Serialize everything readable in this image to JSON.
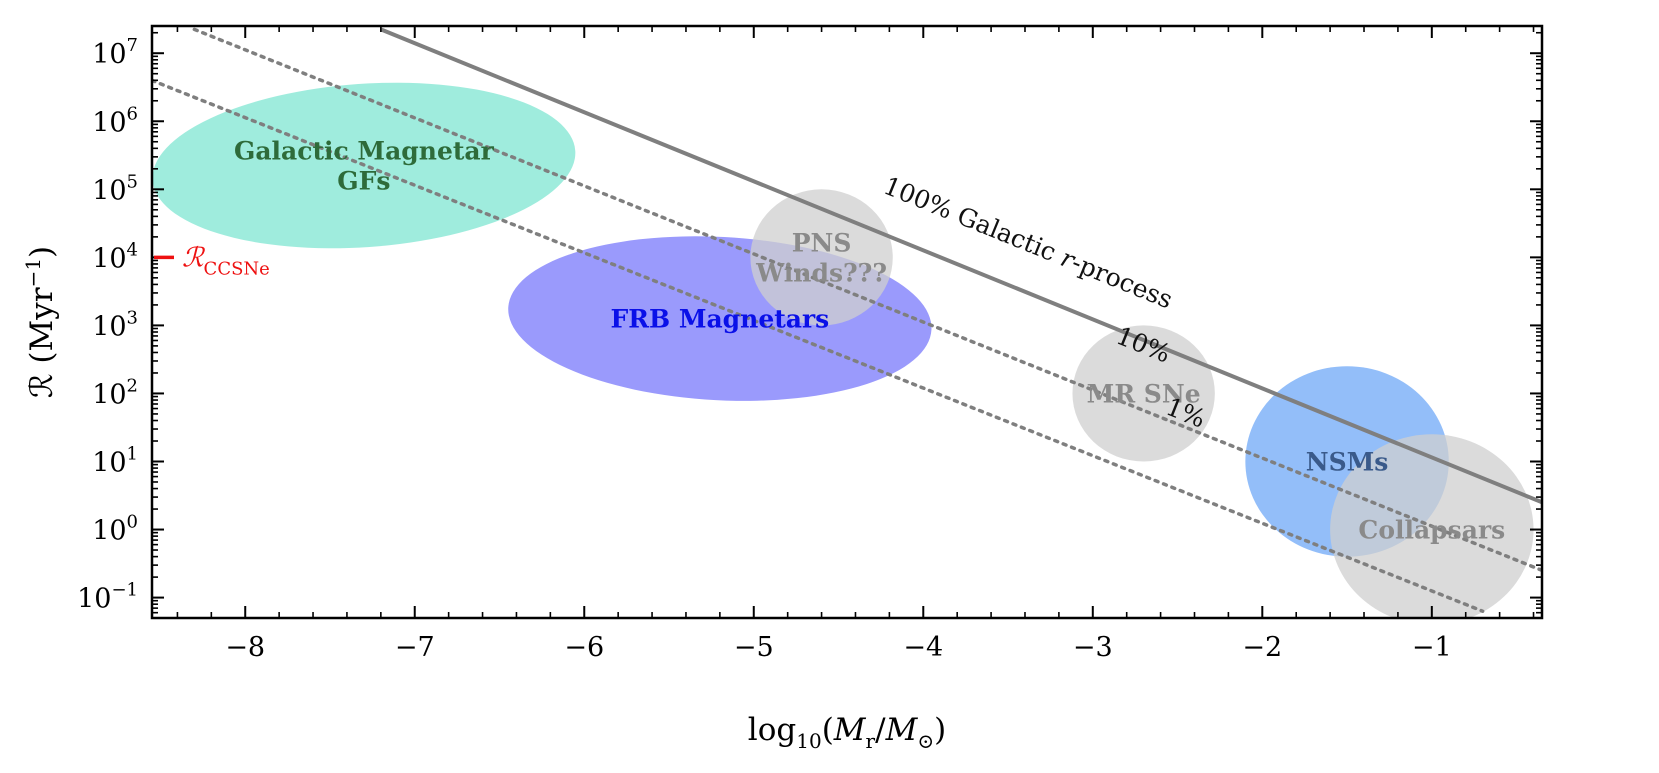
{
  "chart_data": {
    "type": "scatter",
    "title": "",
    "xlabel": {
      "pre": "log",
      "sub": "10",
      "mid": "(M",
      "sub2": "r",
      "mid2": "/M",
      "sub3": "⊙",
      "post": ")"
    },
    "ylabel": {
      "pre": "ℛ (Myr",
      "sup": "−1",
      "post": ")"
    },
    "xlim": [
      -8.55,
      -0.35
    ],
    "ylim_log10": [
      -1.3,
      7.4
    ],
    "x_ticks": [
      -8,
      -7,
      -6,
      -5,
      -4,
      -3,
      -2,
      -1
    ],
    "x_tick_labels": [
      "−8",
      "−7",
      "−6",
      "−5",
      "−4",
      "−3",
      "−2",
      "−1"
    ],
    "y_ticks_log10": [
      -1,
      0,
      1,
      2,
      3,
      4,
      5,
      6,
      7
    ],
    "y_tick_labels": [
      {
        "base": "10",
        "exp": "−1"
      },
      {
        "base": "10",
        "exp": "0"
      },
      {
        "base": "10",
        "exp": "1"
      },
      {
        "base": "10",
        "exp": "2"
      },
      {
        "base": "10",
        "exp": "3"
      },
      {
        "base": "10",
        "exp": "4"
      },
      {
        "base": "10",
        "exp": "5"
      },
      {
        "base": "10",
        "exp": "6"
      },
      {
        "base": "10",
        "exp": "7"
      }
    ],
    "lines": [
      {
        "name": "100% Galactic r-process",
        "label": "100% Galactic r-process",
        "style": "solid",
        "color": "#7f7f7f",
        "x": [
          -7.2,
          -0.35
        ],
        "log10_y": [
          7.35,
          0.4
        ]
      },
      {
        "name": "10%",
        "label": "10%",
        "style": "dotted",
        "color": "#7f7f7f",
        "x": [
          -8.3,
          -0.35
        ],
        "log10_y": [
          7.35,
          -0.6
        ]
      },
      {
        "name": "1%",
        "label": "1%",
        "style": "dotted",
        "color": "#7f7f7f",
        "x": [
          -8.55,
          -0.7
        ],
        "log10_y": [
          6.6,
          -1.2
        ]
      }
    ],
    "line_label_positions": [
      {
        "label": "100% Galactic r-process",
        "x": -3.4,
        "log10_y": 4.1
      },
      {
        "label": "10%",
        "x": -2.72,
        "log10_y": 2.6
      },
      {
        "label": "1%",
        "x": -2.47,
        "log10_y": 1.6
      }
    ],
    "regions": [
      {
        "name": "Galactic Magnetar GFs",
        "lines": [
          "Galactic Magnetar",
          "GFs"
        ],
        "cx": -7.3,
        "log10_cy": 5.35,
        "rx": 1.25,
        "r_log10": 1.2,
        "angle_deg": -4,
        "fill": "#7fe5d2",
        "opacity": 0.75,
        "text_color": "#2e6b3a"
      },
      {
        "name": "FRB Magnetars",
        "lines": [
          "FRB Magnetars"
        ],
        "cx": -5.2,
        "log10_cy": 3.1,
        "rx": 1.25,
        "r_log10": 1.2,
        "angle_deg": 3,
        "fill": "#6f6ffb",
        "opacity": 0.7,
        "text_color": "#0a10e8"
      },
      {
        "name": "PNS Winds???",
        "lines": [
          "PNS",
          "Winds???"
        ],
        "cx": -4.6,
        "log10_cy": 4.0,
        "rx": 0.42,
        "r_log10": 1.0,
        "angle_deg": 0,
        "fill": "#cfcfcf",
        "opacity": 0.75,
        "text_color": "#8a8a8a"
      },
      {
        "name": "MR SNe",
        "lines": [
          "MR SNe"
        ],
        "cx": -2.7,
        "log10_cy": 2.0,
        "rx": 0.42,
        "r_log10": 1.0,
        "angle_deg": 0,
        "fill": "#cfcfcf",
        "opacity": 0.75,
        "text_color": "#8a8a8a"
      },
      {
        "name": "NSMs",
        "lines": [
          "NSMs"
        ],
        "cx": -1.5,
        "log10_cy": 1.0,
        "rx": 0.6,
        "r_log10": 1.4,
        "angle_deg": 0,
        "fill": "#6fa8f7",
        "opacity": 0.75,
        "text_color": "#3a5a8a"
      },
      {
        "name": "Collapsars",
        "lines": [
          "Collapsars"
        ],
        "cx": -1.0,
        "log10_cy": 0.0,
        "rx": 0.6,
        "r_log10": 1.4,
        "angle_deg": 0,
        "fill": "#cfcfcf",
        "opacity": 0.75,
        "text_color": "#8a8a8a"
      }
    ],
    "marker": {
      "name": "R_CCSNe",
      "label_main": "ℛ",
      "label_sub": "CCSNe",
      "log10_y": 4.0,
      "color": "#ee1111"
    },
    "grid": false,
    "legend": "none"
  }
}
